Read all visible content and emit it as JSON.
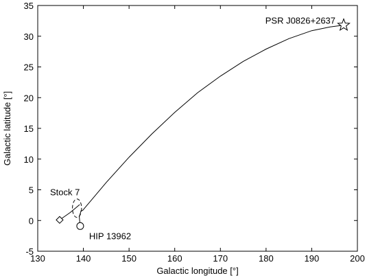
{
  "chart_data": {
    "type": "line",
    "title": "",
    "xlabel": "Galactic longitude [°]",
    "ylabel": "Galactic latitude [°]",
    "xlim": [
      130,
      200
    ],
    "ylim": [
      -5,
      35
    ],
    "xticks": [
      130,
      140,
      150,
      160,
      170,
      180,
      190,
      200
    ],
    "yticks": [
      -5,
      0,
      5,
      10,
      15,
      20,
      25,
      30,
      35
    ],
    "grid": false,
    "series": [
      {
        "values": [
          [
            139.8,
            1.6
          ],
          [
            145,
            6.2
          ],
          [
            150,
            10.3
          ],
          [
            155,
            14.1
          ],
          [
            160,
            17.6
          ],
          [
            165,
            20.8
          ],
          [
            170,
            23.5
          ],
          [
            175,
            25.9
          ],
          [
            180,
            27.9
          ],
          [
            185,
            29.6
          ],
          [
            190,
            30.9
          ],
          [
            194,
            31.5
          ],
          [
            197,
            31.8
          ]
        ]
      },
      {
        "values": [
          [
            139.3,
            -0.9
          ],
          [
            139.1,
            0.6
          ],
          [
            139.5,
            1.6
          ],
          [
            139.8,
            1.6
          ]
        ]
      },
      {
        "values": [
          [
            134.8,
            0.1
          ],
          [
            137.1,
            1.3
          ],
          [
            138.4,
            2.1
          ],
          [
            139.2,
            2.6
          ]
        ]
      }
    ],
    "objects": [
      {
        "label": "PSR J0826+2637",
        "x": 197,
        "y": 31.8,
        "marker": "star"
      },
      {
        "label": "Stock 7",
        "x": 134.8,
        "y": 0.1,
        "marker": "diamond"
      },
      {
        "label": "HIP 13962",
        "x": 139.3,
        "y": -0.9,
        "marker": "circle"
      }
    ],
    "region": {
      "x": 138.6,
      "y": 2.0,
      "rx": 1.0,
      "ry": 1.5,
      "style": "dashed"
    }
  }
}
